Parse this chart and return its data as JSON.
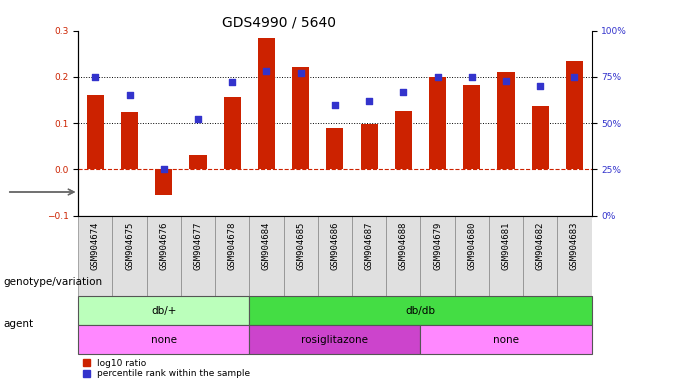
{
  "title": "GDS4990 / 5640",
  "samples": [
    "GSM904674",
    "GSM904675",
    "GSM904676",
    "GSM904677",
    "GSM904678",
    "GSM904684",
    "GSM904685",
    "GSM904686",
    "GSM904687",
    "GSM904688",
    "GSM904679",
    "GSM904680",
    "GSM904681",
    "GSM904682",
    "GSM904683"
  ],
  "log10_ratio": [
    0.16,
    0.125,
    -0.055,
    0.03,
    0.157,
    0.285,
    0.222,
    0.09,
    0.098,
    0.127,
    0.2,
    0.183,
    0.21,
    0.138,
    0.235
  ],
  "percentile_pct": [
    75,
    65,
    25,
    52,
    72,
    78,
    77,
    60,
    62,
    67,
    75,
    75,
    73,
    70,
    75
  ],
  "bar_color": "#cc2200",
  "dot_color": "#3333cc",
  "bg_color": "#ffffff",
  "ylim_left": [
    -0.1,
    0.3
  ],
  "ylim_right": [
    0,
    100
  ],
  "yticks_left": [
    -0.1,
    0.0,
    0.1,
    0.2,
    0.3
  ],
  "yticks_right": [
    0,
    25,
    50,
    75,
    100
  ],
  "hline_y": [
    0.1,
    0.2
  ],
  "zero_line_y": 0.0,
  "genotype_groups": [
    {
      "label": "db/+",
      "start": 0,
      "end": 5,
      "color": "#bbffbb"
    },
    {
      "label": "db/db",
      "start": 5,
      "end": 15,
      "color": "#44dd44"
    }
  ],
  "agent_groups": [
    {
      "label": "none",
      "start": 0,
      "end": 5,
      "color": "#ff88ff"
    },
    {
      "label": "rosiglitazone",
      "start": 5,
      "end": 10,
      "color": "#cc44cc"
    },
    {
      "label": "none",
      "start": 10,
      "end": 15,
      "color": "#ff88ff"
    }
  ],
  "legend_labels": [
    "log10 ratio",
    "percentile rank within the sample"
  ],
  "legend_colors": [
    "#cc2200",
    "#3333cc"
  ],
  "row_labels": [
    "genotype/variation",
    "agent"
  ],
  "title_fontsize": 10,
  "tick_fontsize": 6.5,
  "label_fontsize": 7.5,
  "bar_width": 0.5
}
